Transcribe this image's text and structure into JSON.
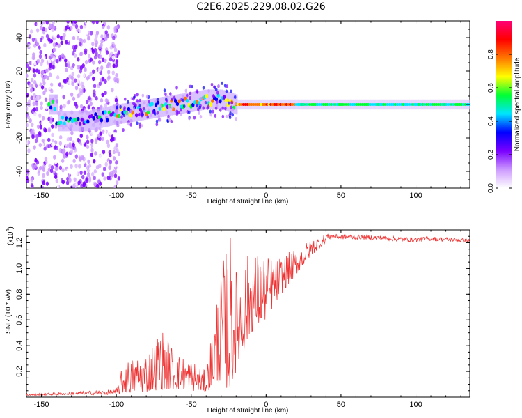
{
  "title": "C2E6.2025.229.08.02.G26",
  "chart_data": [
    {
      "type": "heatmap",
      "xlabel": "Height of straight line (km)",
      "ylabel": "Frequency (Hz)",
      "xlim": [
        -160,
        136
      ],
      "ylim": [
        -50,
        50
      ],
      "x_ticks": [
        -150,
        -100,
        -50,
        0,
        50,
        100
      ],
      "y_ticks": [
        -40,
        -20,
        0,
        20,
        40
      ],
      "colorbar": {
        "label": "Normalized spectral amplitude",
        "range": [
          0,
          1
        ],
        "ticks": [
          "0.0",
          "0.2",
          "0.4",
          "0.6",
          "0.8"
        ],
        "colors": [
          "#ffffff",
          "#cc99ff",
          "#7a00ff",
          "#0000ff",
          "#00e5ff",
          "#00ff33",
          "#ffff00",
          "#ff7700",
          "#ff0000",
          "#ff0077"
        ]
      },
      "ridge": {
        "description_points": [
          {
            "x": -140,
            "y": -10
          },
          {
            "x": -120,
            "y": -10
          },
          {
            "x": -100,
            "y": -6
          },
          {
            "x": -80,
            "y": -3
          },
          {
            "x": -60,
            "y": 0
          },
          {
            "x": -40,
            "y": 3
          },
          {
            "x": -30,
            "y": 3
          },
          {
            "x": -20,
            "y": 0
          },
          {
            "x": 0,
            "y": 0
          },
          {
            "x": 136,
            "y": 0
          }
        ]
      }
    },
    {
      "type": "line",
      "xlabel": "Height of straight line (km)",
      "ylabel": "SNR (10 * v/v)",
      "y_multiplier": "(x10",
      "y_multiplier_exp": "4",
      "y_multiplier_close": ")",
      "xlim": [
        -160,
        136
      ],
      "ylim": [
        0,
        1.3
      ],
      "x_ticks": [
        -150,
        -100,
        -50,
        0,
        50,
        100
      ],
      "y_ticks": [
        "0.2",
        "0.4",
        "0.6",
        "0.8",
        "1.0",
        "1.2"
      ],
      "color": "#ee3333",
      "envelope": [
        {
          "x": -160,
          "lo": 0.01,
          "hi": 0.03
        },
        {
          "x": -130,
          "lo": 0.02,
          "hi": 0.04
        },
        {
          "x": -100,
          "lo": 0.02,
          "hi": 0.06
        },
        {
          "x": -95,
          "lo": 0.03,
          "hi": 0.28
        },
        {
          "x": -80,
          "lo": 0.04,
          "hi": 0.35
        },
        {
          "x": -70,
          "lo": 0.06,
          "hi": 0.55
        },
        {
          "x": -60,
          "lo": 0.06,
          "hi": 0.35
        },
        {
          "x": -50,
          "lo": 0.05,
          "hi": 0.3
        },
        {
          "x": -40,
          "lo": 0.04,
          "hi": 0.2
        },
        {
          "x": -32,
          "lo": 0.1,
          "hi": 0.9
        },
        {
          "x": -24,
          "lo": 0.05,
          "hi": 1.3
        },
        {
          "x": -20,
          "lo": 0.2,
          "hi": 1.0
        },
        {
          "x": -10,
          "lo": 0.5,
          "hi": 1.15
        },
        {
          "x": 0,
          "lo": 0.6,
          "hi": 1.1
        },
        {
          "x": 10,
          "lo": 0.8,
          "hi": 1.1
        },
        {
          "x": 20,
          "lo": 0.95,
          "hi": 1.15
        },
        {
          "x": 30,
          "lo": 1.1,
          "hi": 1.23
        },
        {
          "x": 40,
          "lo": 1.2,
          "hi": 1.27
        },
        {
          "x": 70,
          "lo": 1.2,
          "hi": 1.26
        },
        {
          "x": 100,
          "lo": 1.18,
          "hi": 1.24
        },
        {
          "x": 110,
          "lo": 1.19,
          "hi": 1.25
        },
        {
          "x": 136,
          "lo": 1.18,
          "hi": 1.23
        }
      ]
    }
  ]
}
